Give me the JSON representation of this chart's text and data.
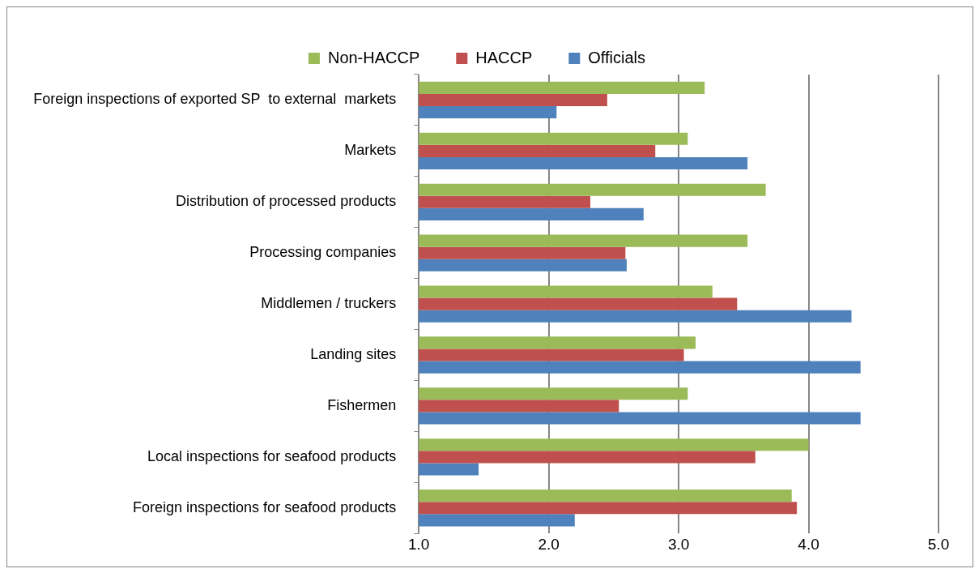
{
  "chart_data": {
    "type": "bar",
    "orientation": "horizontal",
    "categories": [
      "Foreign inspections of exported SP  to external  markets",
      "Markets",
      "Distribution of processed products",
      "Processing companies",
      "Middlemen / truckers",
      "Landing sites",
      "Fishermen",
      "Local inspections for seafood products",
      "Foreign inspections for seafood products"
    ],
    "series": [
      {
        "name": "Non-HACCP",
        "color": "#9bbb59",
        "values": [
          3.2,
          3.07,
          3.67,
          3.53,
          3.26,
          3.13,
          3.07,
          4.0,
          3.87
        ]
      },
      {
        "name": "HACCP",
        "color": "#c0504d",
        "values": [
          2.45,
          2.82,
          2.32,
          2.59,
          3.45,
          3.04,
          2.54,
          3.59,
          3.91
        ]
      },
      {
        "name": "Officials",
        "color": "#4f81bd",
        "values": [
          2.06,
          3.53,
          2.73,
          2.6,
          4.33,
          4.4,
          4.4,
          1.46,
          2.2
        ]
      }
    ],
    "xlim": [
      1.0,
      5.0
    ],
    "xticks": [
      {
        "value": 1,
        "label": "1.0"
      },
      {
        "value": 2,
        "label": "2.0"
      },
      {
        "value": 3,
        "label": "3.0"
      },
      {
        "value": 4,
        "label": "4.0"
      },
      {
        "value": 5,
        "label": "5.0"
      }
    ],
    "grid": "x",
    "legend": "top"
  }
}
